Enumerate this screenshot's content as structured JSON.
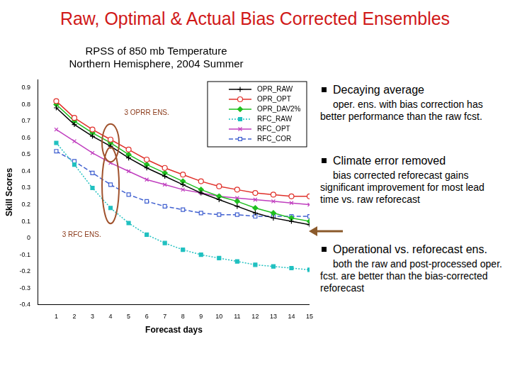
{
  "title": "Raw, Optimal & Actual Bias Corrected Ensembles",
  "bullets": [
    {
      "heading": "Decaying average",
      "text": "oper. ens. with bias correction has better performance than the raw fcst."
    },
    {
      "heading": "Climate error removed",
      "text": "bias corrected reforecast gains significant improvement for most lead time vs. raw reforecast"
    },
    {
      "heading": "Operational vs. reforecast ens.",
      "text": "both the raw and post-processed oper. fcst. are better than the bias-corrected reforecast"
    }
  ],
  "chart_data": {
    "type": "line",
    "title": [
      "RPSS of 850 mb Temperature",
      "Northern Hemisphere, 2004 Summer"
    ],
    "x_label": "Forecast days",
    "y_label": "Skill Scores",
    "x": [
      1,
      2,
      3,
      4,
      5,
      6,
      7,
      8,
      9,
      10,
      11,
      12,
      13,
      14,
      15
    ],
    "series": [
      {
        "name": "OPR_RAW",
        "color": "#000000",
        "marker": "plus",
        "line_style": "solid",
        "values": [
          0.78,
          0.68,
          0.61,
          0.55,
          0.48,
          0.42,
          0.37,
          0.32,
          0.27,
          0.23,
          0.19,
          0.15,
          0.12,
          0.1,
          0.08
        ]
      },
      {
        "name": "OPR_OPT",
        "color": "#e0302a",
        "marker": "circle",
        "line_style": "solid",
        "values": [
          0.82,
          0.72,
          0.65,
          0.59,
          0.53,
          0.47,
          0.42,
          0.38,
          0.34,
          0.31,
          0.29,
          0.27,
          0.26,
          0.25,
          0.25
        ]
      },
      {
        "name": "OPR_DAV2%",
        "color": "#1fbf1f",
        "marker": "diamond",
        "line_style": "solid",
        "values": [
          0.8,
          0.7,
          0.63,
          0.57,
          0.5,
          0.44,
          0.39,
          0.34,
          0.29,
          0.25,
          0.22,
          0.18,
          0.15,
          0.12,
          0.1
        ]
      },
      {
        "name": "RFC_RAW",
        "color": "#20c0c0",
        "marker": "filled_square",
        "line_style": "dotted",
        "values": [
          0.57,
          0.44,
          0.3,
          0.18,
          0.09,
          0.02,
          -0.03,
          -0.07,
          -0.1,
          -0.12,
          -0.14,
          -0.16,
          -0.17,
          -0.18,
          -0.19
        ]
      },
      {
        "name": "RFC_OPT",
        "color": "#c03fbf",
        "marker": "x",
        "line_style": "solid",
        "values": [
          0.65,
          0.58,
          0.51,
          0.45,
          0.4,
          0.35,
          0.32,
          0.29,
          0.27,
          0.25,
          0.24,
          0.23,
          0.22,
          0.21,
          0.2
        ]
      },
      {
        "name": "RFC_COR",
        "color": "#4060d0",
        "marker": "square",
        "line_style": "dashed",
        "values": [
          0.52,
          0.46,
          0.39,
          0.32,
          0.26,
          0.22,
          0.19,
          0.17,
          0.15,
          0.14,
          0.14,
          0.13,
          0.13,
          0.13,
          0.13
        ]
      }
    ],
    "xlim": [
      0,
      15
    ],
    "xticks": [
      1,
      2,
      3,
      4,
      5,
      6,
      7,
      8,
      9,
      10,
      11,
      12,
      13,
      14,
      15
    ],
    "ylim": [
      -0.4,
      0.95
    ],
    "yticks": [
      -0.4,
      -0.3,
      -0.2,
      -0.1,
      0,
      0.1,
      0.2,
      0.3,
      0.4,
      0.5,
      0.6,
      0.7,
      0.8,
      0.9
    ],
    "grid": false,
    "legend": "upper right",
    "annotations": [
      "3 OPRR ENS.",
      "3 RFC ENS."
    ]
  }
}
